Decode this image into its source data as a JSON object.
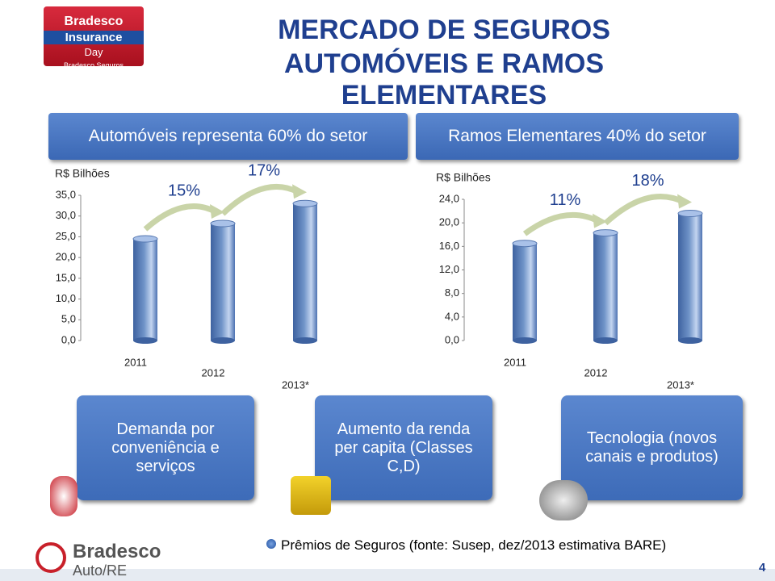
{
  "header": {
    "title_line1": "MERCADO DE SEGUROS",
    "title_line2": "AUTOMÓVEIS E RAMOS ELEMENTARES"
  },
  "logo_top": {
    "line1": "Bradesco",
    "line2": "Insurance",
    "line3": "Day",
    "line4": "Bradesco Seguros"
  },
  "banners": [
    "Automóveis representa 60% do setor",
    "Ramos Elementares 40% do setor"
  ],
  "chart_data": [
    {
      "type": "bar",
      "y_label": "R$ Bilhões",
      "categories": [
        "2011",
        "2012",
        "2013*"
      ],
      "values": [
        24.5,
        28.2,
        33.0
      ],
      "color": "#6f93c8",
      "annotations": [
        "15%",
        "17%"
      ],
      "ylim": [
        0,
        35
      ],
      "yticks": [
        {
          "value": 0,
          "label": "0,0"
        },
        {
          "value": 5,
          "label": "5,0"
        },
        {
          "value": 10,
          "label": "10,0"
        },
        {
          "value": 15,
          "label": "15,0"
        },
        {
          "value": 20,
          "label": "20,0"
        },
        {
          "value": 25,
          "label": "25,0"
        },
        {
          "value": 30,
          "label": "30,0"
        },
        {
          "value": 35,
          "label": "35,0"
        }
      ]
    },
    {
      "type": "bar",
      "y_label": "R$ Bilhões",
      "categories": [
        "2011",
        "2012",
        "2013*"
      ],
      "values": [
        16.5,
        18.3,
        21.6
      ],
      "color": "#6f93c8",
      "annotations": [
        "11%",
        "18%"
      ],
      "ylim": [
        0,
        24
      ],
      "yticks": [
        {
          "value": 0,
          "label": "0,0"
        },
        {
          "value": 4,
          "label": "4,0"
        },
        {
          "value": 8,
          "label": "8,0"
        },
        {
          "value": 12,
          "label": "12,0"
        },
        {
          "value": 16,
          "label": "16,0"
        },
        {
          "value": 20,
          "label": "20,0"
        },
        {
          "value": 24,
          "label": "24,0"
        }
      ]
    }
  ],
  "drivers": [
    "Demanda por conveniência e serviços",
    "Aumento da renda per capita (Classes C,D)",
    "Tecnologia (novos canais e produtos)"
  ],
  "footer": {
    "note": "Prêmios de Seguros (fonte: Susep, dez/2013 estimativa BARE)",
    "logo_line1": "Bradesco",
    "logo_line2": "Auto/RE",
    "page": "4"
  }
}
